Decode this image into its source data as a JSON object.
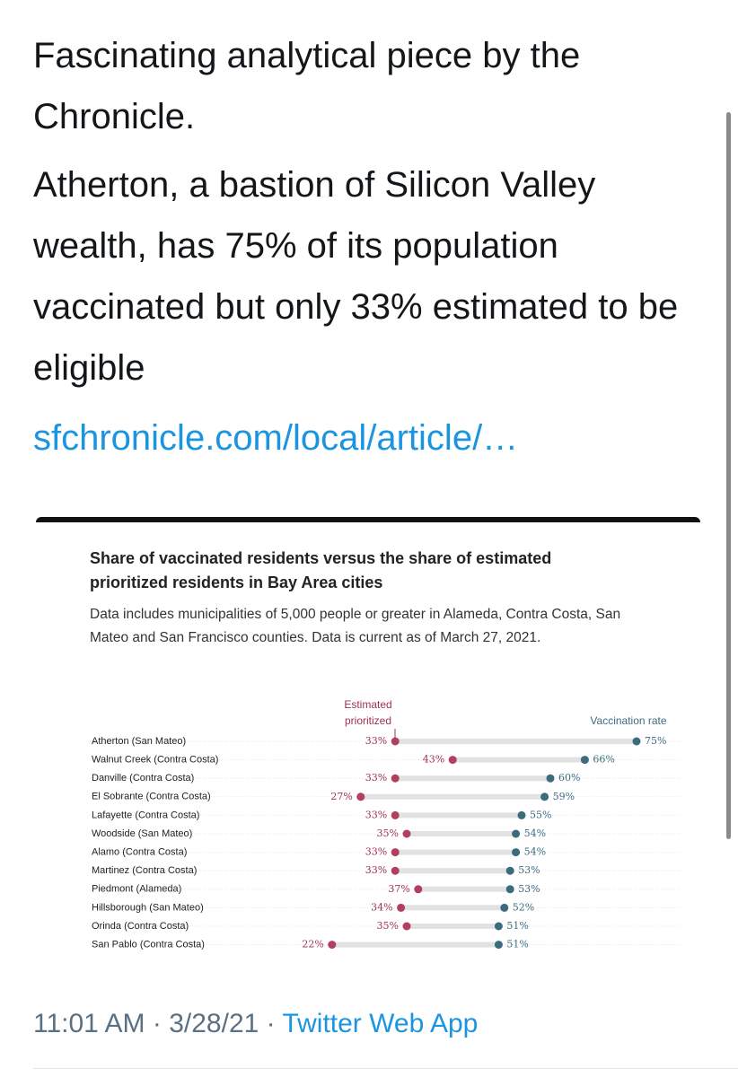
{
  "tweet": {
    "paragraphs": [
      "Fascinating analytical piece by the Chronicle.",
      "Atherton, a bastion of Silicon Valley wealth, has 75% of its population vaccinated but only 33% estimated to be eligible"
    ],
    "link": "sfchronicle.com/local/article/…",
    "time": "11:01 AM",
    "separator": "·",
    "date": "3/28/21",
    "source": "Twitter Web App"
  },
  "chart_data": {
    "type": "dumbbell",
    "title": "Share of vaccinated residents versus the share of estimated prioritized residents in Bay Area cities",
    "subtitle": "Data includes municipalities of 5,000 people or greater in Alameda, Contra Costa, San Mateo and San Francisco counties. Data is current as of March 27, 2021.",
    "categories": [
      "Atherton (San Mateo)",
      "Walnut Creek (Contra Costa)",
      "Danville (Contra Costa)",
      "El Sobrante (Contra Costa)",
      "Lafayette (Contra Costa)",
      "Woodside (San Mateo)",
      "Alamo (Contra Costa)",
      "Martinez (Contra Costa)",
      "Piedmont (Alameda)",
      "Hillsborough (San Mateo)",
      "Orinda (Contra Costa)",
      "San Pablo (Contra Costa)"
    ],
    "series": [
      {
        "name": "Estimated prioritized",
        "color": "#b0405e",
        "values": [
          33,
          43,
          33,
          27,
          33,
          35,
          33,
          33,
          37,
          34,
          35,
          22
        ],
        "value_labels": [
          "33%",
          "43%",
          "33%",
          "27%",
          "33%",
          "35%",
          "33%",
          "33%",
          "37%",
          "34%",
          "35%",
          "22%"
        ]
      },
      {
        "name": "Vaccination rate",
        "color": "#3b6c7e",
        "values": [
          75,
          66,
          60,
          59,
          55,
          54,
          54,
          53,
          53,
          52,
          51,
          51
        ],
        "value_labels": [
          "75%",
          "66%",
          "60%",
          "59%",
          "55%",
          "54%",
          "54%",
          "53%",
          "53%",
          "52%",
          "51%",
          "51%"
        ]
      }
    ]
  }
}
